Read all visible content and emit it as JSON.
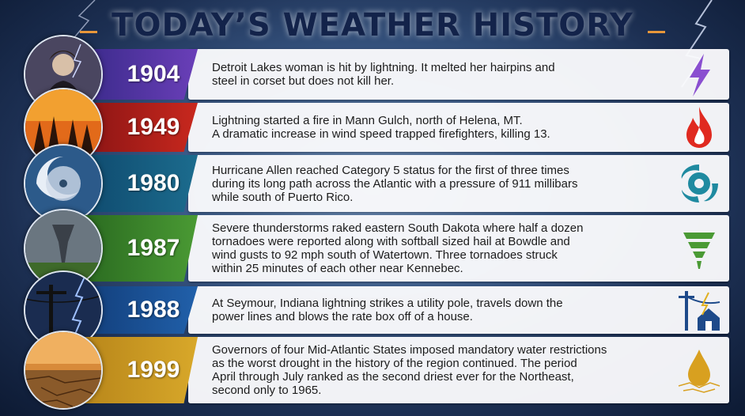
{
  "header": {
    "title": "TODAY’S WEATHER HISTORY"
  },
  "events": [
    {
      "year": "1904",
      "lines": [
        "Detroit Lakes woman is hit by lightning. It melted her hairpins and",
        "steel in corset but does not kill her."
      ]
    },
    {
      "year": "1949",
      "lines": [
        "Lightning started a fire in Mann Gulch, north of Helena, MT.",
        "A dramatic increase in wind speed trapped firefighters, killing 13."
      ]
    },
    {
      "year": "1980",
      "lines": [
        "Hurricane Allen reached Category 5 status for the first of three times",
        "during its long path across the Atlantic with a pressure of 911 millibars",
        "while south of Puerto Rico."
      ]
    },
    {
      "year": "1987",
      "lines": [
        "Severe thunderstorms raked eastern South Dakota where half a dozen",
        "tornadoes were reported along with softball sized hail at Bowdle and",
        "wind gusts to 92 mph south of Watertown. Three tornadoes struck",
        "within 25 minutes of each other near Kennebec."
      ]
    },
    {
      "year": "1988",
      "lines": [
        "At Seymour, Indiana lightning strikes a utility pole, travels down the",
        "power lines and blows the rate box off of a house."
      ]
    },
    {
      "year": "1999",
      "lines": [
        "Governors of four Mid-Atlantic States imposed mandatory water restrictions",
        "as the worst drought in the history of the region continued. The period",
        "April through July ranked as the second driest ever for the Northeast,",
        "second only to 1965."
      ]
    }
  ]
}
